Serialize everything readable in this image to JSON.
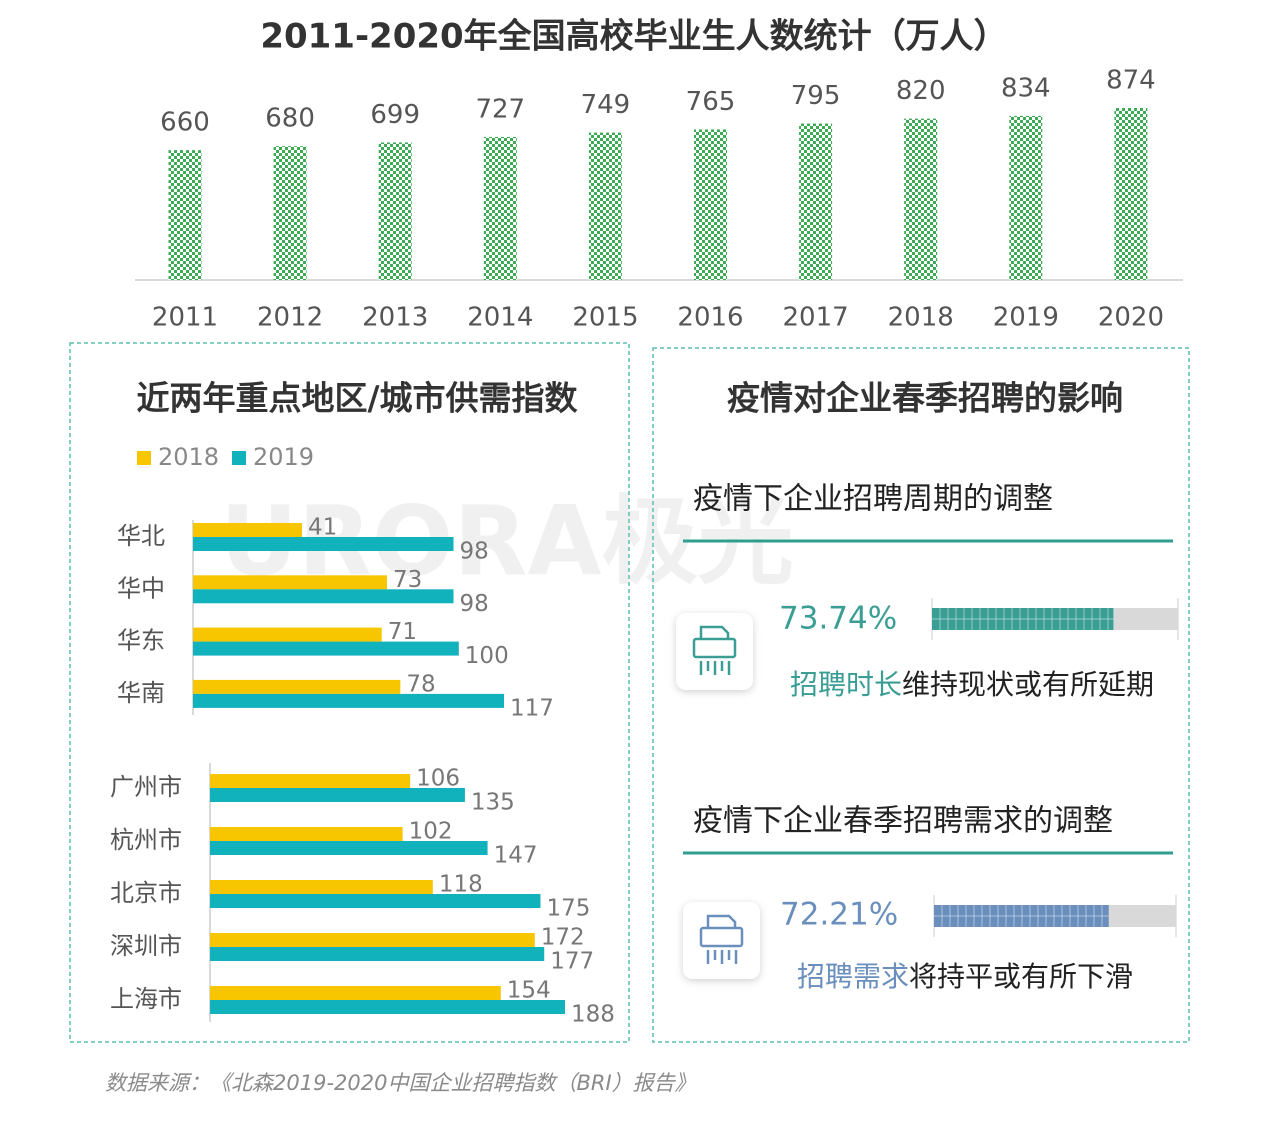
{
  "chart_data": [
    {
      "type": "bar",
      "title": "2011-2020年全国高校毕业生人数统计（万人）",
      "categories": [
        "2011",
        "2012",
        "2013",
        "2014",
        "2015",
        "2016",
        "2017",
        "2018",
        "2019",
        "2020"
      ],
      "values": [
        660,
        680,
        699,
        727,
        749,
        765,
        795,
        820,
        834,
        874
      ],
      "color": "#3daa55"
    },
    {
      "type": "hbar",
      "title": "近两年重点地区/城市供需指数",
      "legend": "top-left",
      "categories": [
        "华北",
        "华中",
        "华东",
        "华南"
      ],
      "series": [
        {
          "name": "2018",
          "color": "#f7c600",
          "values": [
            41,
            73,
            71,
            78
          ]
        },
        {
          "name": "2019",
          "color": "#12b2bd",
          "values": [
            98,
            98,
            100,
            117
          ]
        }
      ]
    },
    {
      "type": "hbar",
      "categories": [
        "广州市",
        "杭州市",
        "北京市",
        "深圳市",
        "上海市"
      ],
      "series": [
        {
          "color": "#f7c600",
          "values": [
            106,
            102,
            118,
            172,
            154
          ]
        },
        {
          "color": "#12b2bd",
          "values": [
            135,
            147,
            175,
            177,
            188
          ]
        }
      ]
    }
  ],
  "impact": {
    "title": "疫情对企业春季招聘的影响",
    "items": [
      {
        "heading": "疫情下企业招聘周期的调整",
        "value": 73.74,
        "value_label": "73.74%",
        "highlight": "招聘时长",
        "text": "维持现状或有所延期",
        "color": "#3a9e94"
      },
      {
        "heading": "疫情下企业春季招聘需求的调整",
        "value": 72.21,
        "value_label": "72.21%",
        "highlight": "招聘需求",
        "text": "将持平或有所下滑",
        "color": "#6a8fbd"
      }
    ]
  },
  "watermark": "URORA极光",
  "source": "数据来源：《北森2019-2020中国企业招聘指数（BRI）报告》"
}
